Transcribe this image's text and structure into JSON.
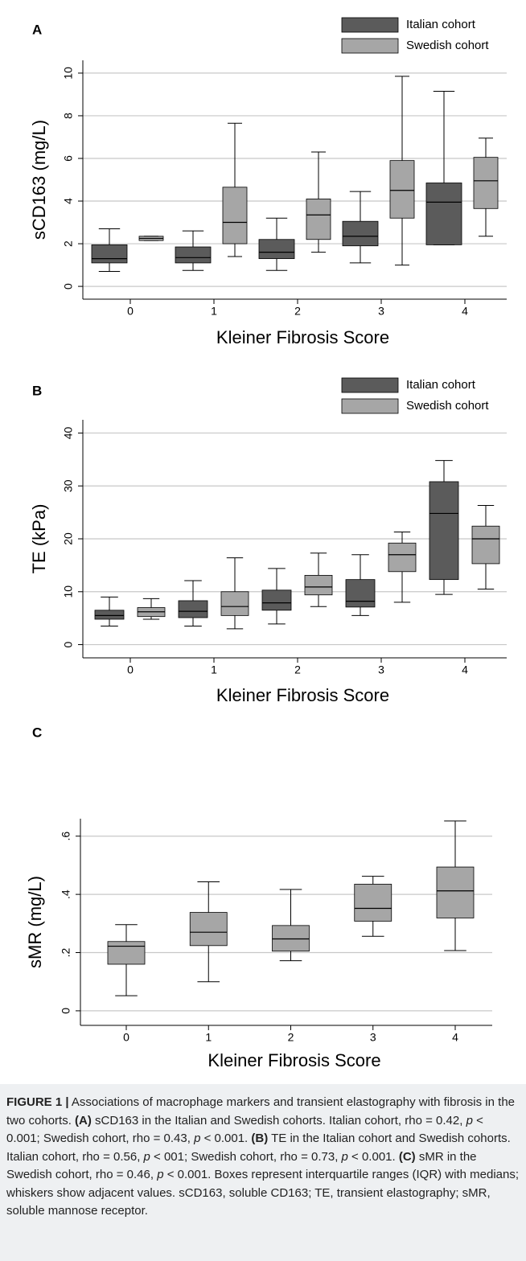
{
  "chart_data": [
    {
      "type": "box",
      "panel": "A",
      "y_label": "sCD163 (mg/L)",
      "x_label": "Kleiner Fibrosis Score",
      "categories": [
        "0",
        "1",
        "2",
        "3",
        "4"
      ],
      "ylim": [
        -0.6,
        10.6
      ],
      "yticks": [
        0,
        2,
        4,
        6,
        8,
        10
      ],
      "grid": true,
      "series": [
        {
          "name": "Italian cohort",
          "color": "#5b5b5b",
          "low": [
            0.7,
            0.75,
            0.75,
            1.1,
            1.95
          ],
          "q1": [
            1.1,
            1.1,
            1.3,
            1.9,
            1.95
          ],
          "median": [
            1.3,
            1.35,
            1.6,
            2.35,
            3.95
          ],
          "q3": [
            1.95,
            1.85,
            2.2,
            3.05,
            4.85
          ],
          "high": [
            2.7,
            2.6,
            3.2,
            4.45,
            9.15
          ]
        },
        {
          "name": "Swedish cohort",
          "color": "#a6a6a6",
          "low": [
            2.15,
            1.4,
            1.6,
            1.0,
            2.35
          ],
          "q1": [
            2.15,
            2.0,
            2.2,
            3.2,
            3.65
          ],
          "median": [
            2.25,
            3.0,
            3.35,
            4.5,
            4.95
          ],
          "q3": [
            2.35,
            4.65,
            4.1,
            5.9,
            6.05
          ],
          "high": [
            2.35,
            7.65,
            6.3,
            9.85,
            6.95
          ]
        }
      ]
    },
    {
      "type": "box",
      "panel": "B",
      "y_label": "TE (kPa)",
      "x_label": "Kleiner Fibrosis Score",
      "categories": [
        "0",
        "1",
        "2",
        "3",
        "4"
      ],
      "ylim": [
        -2.5,
        42.5
      ],
      "yticks": [
        0,
        10,
        20,
        30,
        40
      ],
      "grid": true,
      "series": [
        {
          "name": "Italian cohort",
          "color": "#5b5b5b",
          "low": [
            3.5,
            3.5,
            3.9,
            5.5,
            9.5
          ],
          "q1": [
            4.8,
            5.1,
            6.5,
            7.1,
            12.3
          ],
          "median": [
            5.5,
            6.3,
            7.9,
            8.2,
            24.8
          ],
          "q3": [
            6.5,
            8.3,
            10.3,
            12.3,
            30.8
          ],
          "high": [
            9.0,
            12.1,
            14.4,
            17.0,
            34.8
          ]
        },
        {
          "name": "Swedish cohort",
          "color": "#a6a6a6",
          "low": [
            4.8,
            3.0,
            7.2,
            8.0,
            10.5
          ],
          "q1": [
            5.3,
            5.5,
            9.4,
            13.8,
            15.3
          ],
          "median": [
            6.2,
            7.2,
            10.9,
            17.0,
            20.0
          ],
          "q3": [
            7.0,
            10.0,
            13.1,
            19.2,
            22.4
          ],
          "high": [
            8.7,
            16.4,
            17.3,
            21.3,
            26.3
          ]
        }
      ]
    },
    {
      "type": "box",
      "panel": "C",
      "y_label": "sMR (mg/L)",
      "x_label": "Kleiner Fibrosis Score",
      "categories": [
        "0",
        "1",
        "2",
        "3",
        "4"
      ],
      "ylim": [
        -0.05,
        0.66
      ],
      "yticks": [
        0,
        {
          "value": 0.2,
          "label": ".2"
        },
        {
          "value": 0.4,
          "label": ".4"
        },
        {
          "value": 0.6,
          "label": ".6"
        }
      ],
      "grid": true,
      "series": [
        {
          "color": "#a6a6a6",
          "low": [
            0.052,
            0.1,
            0.172,
            0.256,
            0.207
          ],
          "q1": [
            0.16,
            0.224,
            0.205,
            0.308,
            0.319
          ],
          "median": [
            0.222,
            0.27,
            0.247,
            0.352,
            0.412
          ],
          "q3": [
            0.238,
            0.338,
            0.293,
            0.435,
            0.494
          ],
          "high": [
            0.296,
            0.443,
            0.417,
            0.462,
            0.652
          ]
        }
      ]
    }
  ],
  "caption": {
    "label": "FIGURE 1 |",
    "runs": [
      {
        "text": " Associations of macrophage markers and transient elastography with fibrosis in the two cohorts. ",
        "style": "normal"
      },
      {
        "text": "(A)",
        "style": "bold"
      },
      {
        "text": " sCD163 in the Italian and Swedish cohorts. Italian cohort, rho = 0.42, ",
        "style": "normal"
      },
      {
        "text": "p",
        "style": "italic"
      },
      {
        "text": " < 0.001; Swedish cohort, rho = 0.43, ",
        "style": "normal"
      },
      {
        "text": "p",
        "style": "italic"
      },
      {
        "text": " < 0.001. ",
        "style": "normal"
      },
      {
        "text": "(B)",
        "style": "bold"
      },
      {
        "text": " TE in the Italian cohort and Swedish cohorts. Italian cohort, rho = 0.56, ",
        "style": "normal"
      },
      {
        "text": "p",
        "style": "italic"
      },
      {
        "text": " < 001; Swedish cohort, rho = 0.73, ",
        "style": "normal"
      },
      {
        "text": "p",
        "style": "italic"
      },
      {
        "text": " < 0.001. ",
        "style": "normal"
      },
      {
        "text": "(C)",
        "style": "bold"
      },
      {
        "text": " sMR in the Swedish cohort, rho = 0.46, ",
        "style": "normal"
      },
      {
        "text": "p",
        "style": "italic"
      },
      {
        "text": " < 0.001. Boxes represent interquartile ranges (IQR) with medians; whiskers show adjacent values. sCD163, soluble CD163; TE, transient elastography; sMR, soluble mannose receptor.",
        "style": "normal"
      }
    ]
  }
}
